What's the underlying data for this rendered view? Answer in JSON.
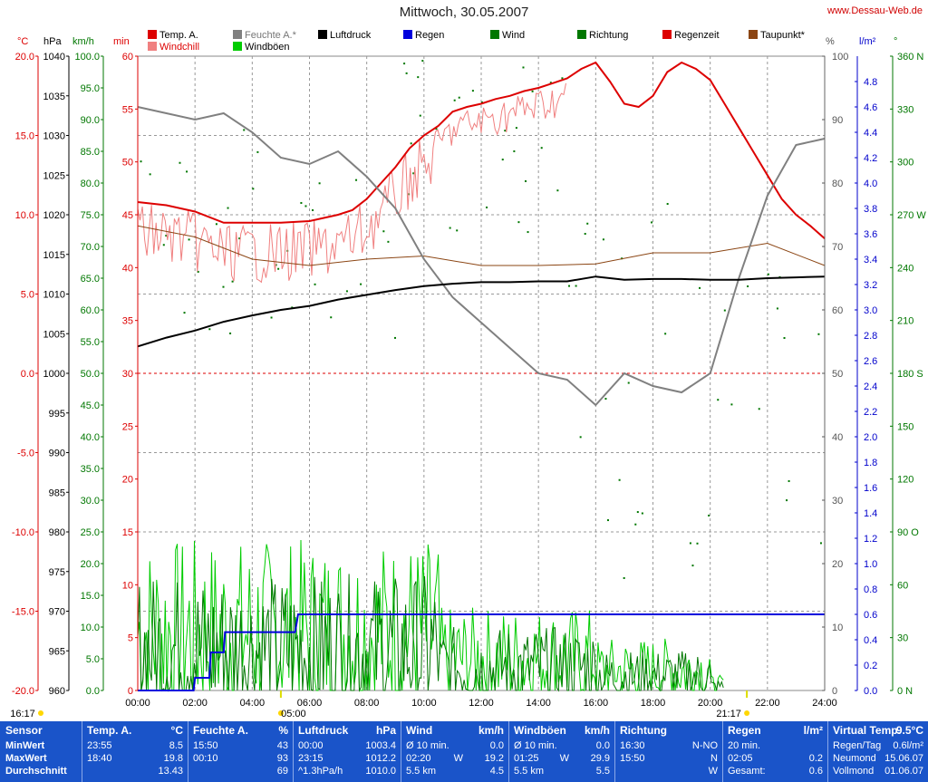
{
  "page": {
    "title": "Mittwoch, 30.05.2007",
    "site": "www.Dessau-Web.de",
    "units": {
      "temp": "°C",
      "pressure": "hPa",
      "wind": "km/h",
      "min": "min",
      "humidity": "%",
      "rain": "l/m²",
      "direction": "°"
    },
    "sunrise": "05:00",
    "sunset": "21:17",
    "moonrise": "16:17"
  },
  "legend": [
    {
      "label": "Temp. A.",
      "color": "#dd0000"
    },
    {
      "label": "Windchill",
      "color": "#f08080"
    },
    {
      "label": "Feuchte A.*",
      "color": "#808080"
    },
    {
      "label": "Windböen",
      "color": "#00cc00"
    },
    {
      "label": "Luftdruck",
      "color": "#000000"
    },
    {
      "label": "Regen",
      "color": "#0000dd"
    },
    {
      "label": "Wind",
      "color": "#007700"
    },
    {
      "label": "Richtung",
      "color": "#007700"
    },
    {
      "label": "Regenzeit",
      "color": "#dd0000"
    },
    {
      "label": "Taupunkt*",
      "color": "#8b4513"
    }
  ],
  "chart_data": {
    "type": "line",
    "x_labels": [
      "00:00",
      "02:00",
      "04:00",
      "06:00",
      "08:00",
      "10:00",
      "12:00",
      "14:00",
      "16:00",
      "18:00",
      "20:00",
      "22:00",
      "24:00"
    ],
    "axes": {
      "temp": {
        "range": [
          -20,
          20
        ],
        "ticks": [
          "20.0",
          "15.0",
          "10.0",
          "5.0",
          "0.0",
          "-5.0",
          "-10.0",
          "-15.0",
          "-20.0"
        ]
      },
      "pressure": {
        "range": [
          960,
          1040
        ],
        "ticks": [
          "1040",
          "1035",
          "1030",
          "1025",
          "1020",
          "1015",
          "1010",
          "1005",
          "1000",
          "995",
          "990",
          "985",
          "980",
          "975",
          "970",
          "965",
          "960"
        ]
      },
      "wind": {
        "range": [
          0,
          100
        ],
        "ticks": [
          "100.0",
          "95.0",
          "90.0",
          "85.0",
          "80.0",
          "75.0",
          "70.0",
          "65.0",
          "60.0",
          "55.0",
          "50.0",
          "45.0",
          "40.0",
          "35.0",
          "30.0",
          "25.0",
          "20.0",
          "15.0",
          "10.0",
          "5.0",
          "0.0"
        ]
      },
      "minutes": {
        "range": [
          0,
          60
        ],
        "ticks": [
          "60",
          "55",
          "50",
          "45",
          "40",
          "35",
          "30",
          "25",
          "20",
          "15",
          "10",
          "5",
          "0"
        ]
      },
      "humidity": {
        "range": [
          0,
          100
        ],
        "ticks": [
          "100",
          "90",
          "80",
          "70",
          "60",
          "50",
          "40",
          "30",
          "20",
          "10",
          "0"
        ]
      },
      "rain": {
        "range": [
          0,
          5
        ],
        "ticks": [
          "4.8",
          "4.6",
          "4.4",
          "4.2",
          "4.0",
          "3.8",
          "3.6",
          "3.4",
          "3.2",
          "3.0",
          "2.8",
          "2.6",
          "2.4",
          "2.2",
          "2.0",
          "1.8",
          "1.6",
          "1.4",
          "1.2",
          "1.0",
          "0.8",
          "0.6",
          "0.4",
          "0.2",
          "0.0"
        ]
      },
      "direction": {
        "range": [
          0,
          360
        ],
        "ticks": [
          "360 N",
          "330",
          "300",
          "270 W",
          "240",
          "210",
          "180 S",
          "150",
          "120",
          "90 O",
          "60",
          "30",
          "0 N"
        ]
      }
    },
    "series": [
      {
        "name": "Temp. A.",
        "axis": "temp",
        "color": "#dd0000",
        "x": [
          0,
          1,
          2,
          3,
          4,
          5,
          6,
          7,
          7.5,
          8,
          8.5,
          9,
          9.5,
          10,
          10.5,
          11,
          11.5,
          12,
          12.5,
          13,
          13.5,
          14,
          14.5,
          15,
          15.5,
          16,
          16.5,
          17,
          17.5,
          18,
          18.5,
          19,
          19.5,
          20,
          20.5,
          21,
          21.5,
          22,
          22.5,
          23,
          23.5,
          24
        ],
        "y": [
          10.8,
          10.6,
          10.2,
          9.5,
          9.5,
          9.5,
          9.6,
          10.0,
          10.3,
          11.0,
          12.0,
          13.0,
          14.2,
          15.0,
          15.6,
          16.5,
          16.8,
          17.0,
          17.3,
          17.5,
          17.8,
          18.0,
          18.3,
          18.6,
          19.2,
          19.6,
          18.4,
          17.0,
          16.8,
          17.5,
          19.0,
          19.6,
          19.2,
          18.5,
          17.0,
          15.5,
          14.0,
          12.5,
          11.0,
          10.0,
          9.3,
          8.5
        ]
      },
      {
        "name": "Taupunkt*",
        "axis": "temp",
        "color": "#8b4513",
        "x": [
          0,
          2,
          4,
          6,
          8,
          10,
          12,
          14,
          16,
          18,
          20,
          22,
          24
        ],
        "y": [
          9.3,
          8.6,
          7.2,
          6.8,
          7.2,
          7.4,
          6.8,
          6.8,
          6.9,
          7.6,
          7.6,
          8.2,
          6.8
        ]
      },
      {
        "name": "Feuchte A.*",
        "axis": "humidity",
        "color": "#808080",
        "x": [
          0,
          1,
          2,
          3,
          4,
          5,
          6,
          7,
          8,
          9,
          10,
          11,
          12,
          13,
          14,
          15,
          16,
          17,
          18,
          19,
          20,
          21,
          22,
          23,
          24
        ],
        "y": [
          92,
          91,
          90,
          91,
          88,
          84,
          83,
          85,
          81,
          76,
          68,
          62,
          58,
          54,
          50,
          49,
          45,
          50,
          48,
          47,
          50,
          65,
          78,
          86,
          87
        ]
      },
      {
        "name": "Luftdruck",
        "axis": "pressure",
        "color": "#000000",
        "x": [
          0,
          1,
          2,
          3,
          4,
          5,
          6,
          7,
          8,
          9,
          10,
          11,
          12,
          13,
          14,
          15,
          16,
          17,
          18,
          19,
          20,
          21,
          22,
          23,
          24
        ],
        "y": [
          1003.4,
          1004.5,
          1005.4,
          1006.5,
          1007.3,
          1008.0,
          1008.5,
          1009.3,
          1009.9,
          1010.5,
          1011.0,
          1011.3,
          1011.5,
          1011.5,
          1011.6,
          1011.6,
          1012.2,
          1011.8,
          1011.9,
          1011.9,
          1011.8,
          1011.8,
          1012.0,
          1012.1,
          1012.2
        ]
      },
      {
        "name": "Regen",
        "axis": "rain",
        "color": "#0000dd",
        "x": [
          0,
          1.95,
          2.0,
          2.5,
          2.55,
          3.0,
          3.05,
          3.5,
          4.0,
          5.0,
          5.5,
          5.6,
          6.0,
          8.0,
          10.0,
          12.0,
          14.0,
          16.0,
          18.0,
          20.0,
          22.0,
          24.0
        ],
        "y": [
          0,
          0,
          0.1,
          0.1,
          0.3,
          0.3,
          0.46,
          0.46,
          0.46,
          0.46,
          0.46,
          0.6,
          0.6,
          0.6,
          0.6,
          0.6,
          0.6,
          0.6,
          0.6,
          0.6,
          0.6,
          0.6
        ]
      }
    ],
    "sunrise_h": 5.0,
    "sunset_h": 21.28
  },
  "footer": [
    {
      "name": "Sensor",
      "unit": "",
      "rows": [
        {
          "k": "MinWert",
          "a": "",
          "v": ""
        },
        {
          "k": "MaxWert",
          "a": "",
          "v": ""
        },
        {
          "k": "Durchschnitt",
          "a": "",
          "v": ""
        }
      ]
    },
    {
      "name": "Temp. A.",
      "unit": "°C",
      "rows": [
        {
          "k": "23:55",
          "a": "",
          "v": "8.5"
        },
        {
          "k": "18:40",
          "a": "",
          "v": "19.8"
        },
        {
          "k": "",
          "a": "",
          "v": "13.43"
        }
      ]
    },
    {
      "name": "Feuchte A.",
      "unit": "%",
      "rows": [
        {
          "k": "15:50",
          "a": "",
          "v": "43"
        },
        {
          "k": "00:10",
          "a": "",
          "v": "93"
        },
        {
          "k": "",
          "a": "",
          "v": "69"
        }
      ]
    },
    {
      "name": "Luftdruck",
      "unit": "hPa",
      "rows": [
        {
          "k": "00:00",
          "a": "",
          "v": "1003.4"
        },
        {
          "k": "23:15",
          "a": "",
          "v": "1012.2"
        },
        {
          "k": "^1.3hPa/h",
          "a": "",
          "v": "1010.0"
        }
      ]
    },
    {
      "name": "Wind",
      "unit": "km/h",
      "rows": [
        {
          "k": "Ø 10 min.",
          "a": "",
          "v": "0.0"
        },
        {
          "k": "02:20",
          "a": "W",
          "v": "19.2"
        },
        {
          "k": "5.5 km",
          "a": "",
          "v": "4.5"
        }
      ]
    },
    {
      "name": "Windböen",
      "unit": "km/h",
      "rows": [
        {
          "k": "Ø 10 min.",
          "a": "",
          "v": "0.0"
        },
        {
          "k": "01:25",
          "a": "W",
          "v": "29.9"
        },
        {
          "k": "5.5 km",
          "a": "",
          "v": "5.5"
        }
      ]
    },
    {
      "name": "Richtung",
      "unit": "",
      "rows": [
        {
          "k": "16:30",
          "a": "",
          "v": "N-NO"
        },
        {
          "k": "15:50",
          "a": "",
          "v": "N"
        },
        {
          "k": "",
          "a": "",
          "v": "W"
        }
      ]
    },
    {
      "name": "Regen",
      "unit": "l/m²",
      "rows": [
        {
          "k": "20 min.",
          "a": "",
          "v": ""
        },
        {
          "k": "02:05",
          "a": "",
          "v": "0.2"
        },
        {
          "k": "Gesamt:",
          "a": "",
          "v": "0.6"
        }
      ]
    },
    {
      "name": "Virtual Temp.",
      "unit": "9.5°C",
      "rows": [
        {
          "k": "Regen/Tag",
          "a": "",
          "v": "0.6l/m²"
        },
        {
          "k": "Neumond",
          "a": "",
          "v": "15.06.07"
        },
        {
          "k": "Vollmond",
          "a": "",
          "v": "01.06.07"
        }
      ]
    }
  ]
}
